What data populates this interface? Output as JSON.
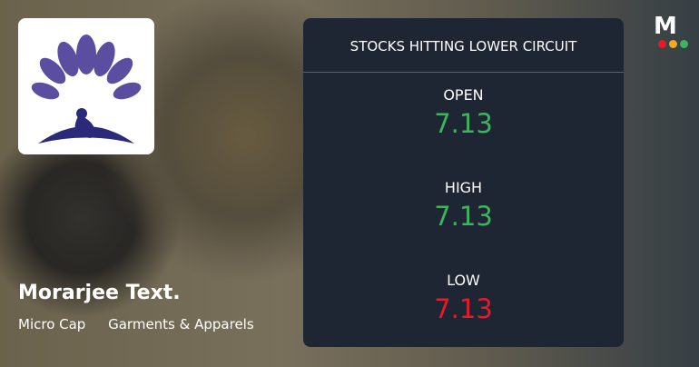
{
  "brand": "M",
  "company": {
    "name": "Morarjee Text.",
    "tags": [
      "Micro Cap",
      "Garments & Apparels"
    ]
  },
  "panel": {
    "title": "STOCKS HITTING LOWER CIRCUIT",
    "rows": [
      {
        "label": "OPEN",
        "value": 7.13,
        "color": "#3cb55e"
      },
      {
        "label": "HIGH",
        "value": 7.13,
        "color": "#3cb55e"
      },
      {
        "label": "LOW",
        "value": 7.13,
        "color": "#e8192c"
      }
    ]
  }
}
